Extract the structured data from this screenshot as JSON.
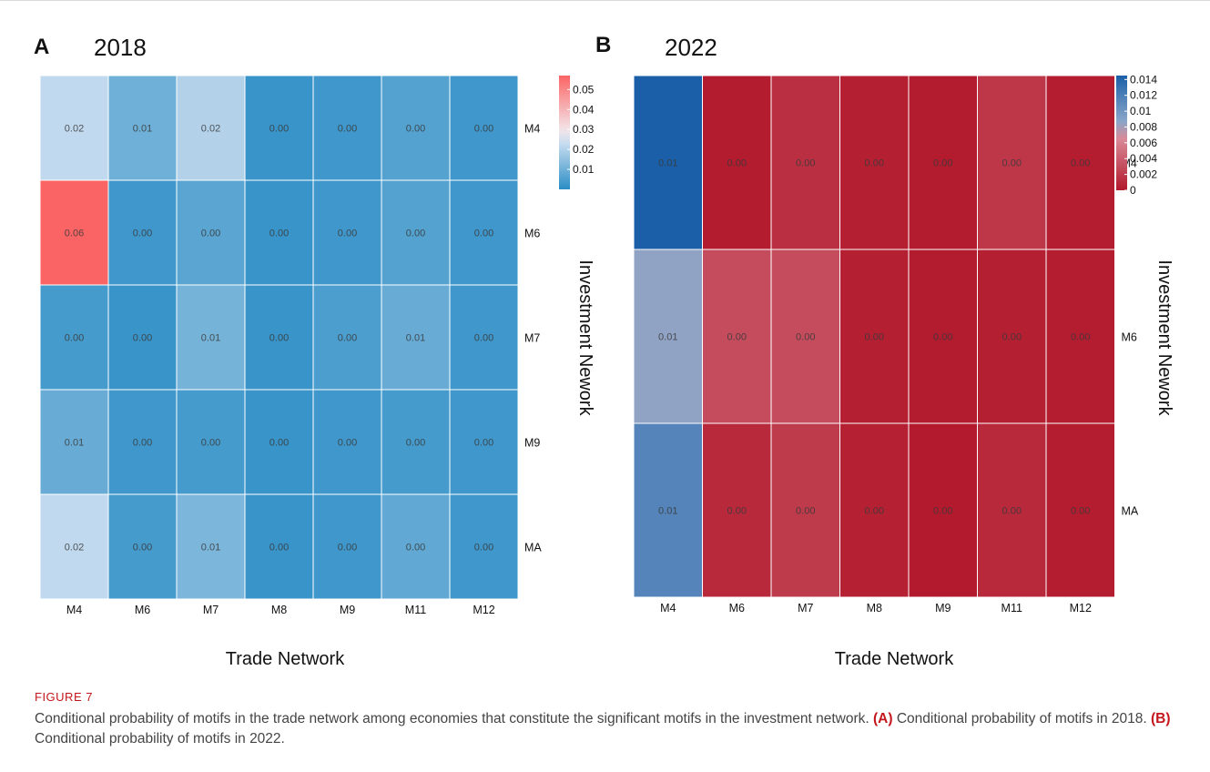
{
  "figure": {
    "label": "FIGURE 7",
    "caption_parts": [
      "Conditional probability of motifs in the trade network among economies that constitute the significant motifs in the investment network. ",
      "(A)",
      " Conditional probability of motifs in 2018. ",
      "(B)",
      " Conditional probability of motifs in 2022."
    ]
  },
  "chart_data": [
    {
      "type": "heatmap",
      "panel_label": "A",
      "title": "2018",
      "xlabel": "Trade Network",
      "ylabel": "Investment Nework",
      "x_categories": [
        "M4",
        "M6",
        "M7",
        "M8",
        "M9",
        "M11",
        "M12"
      ],
      "y_categories": [
        "M4",
        "M6",
        "M7",
        "M9",
        "MA"
      ],
      "cell_labels": [
        [
          "0.02",
          "0.01",
          "0.02",
          "0.00",
          "0.00",
          "0.00",
          "0.00"
        ],
        [
          "0.06",
          "0.00",
          "0.00",
          "0.00",
          "0.00",
          "0.00",
          "0.00"
        ],
        [
          "0.00",
          "0.00",
          "0.01",
          "0.00",
          "0.00",
          "0.01",
          "0.00"
        ],
        [
          "0.01",
          "0.00",
          "0.00",
          "0.00",
          "0.00",
          "0.00",
          "0.00"
        ],
        [
          "0.02",
          "0.00",
          "0.01",
          "0.00",
          "0.00",
          "0.00",
          "0.00"
        ]
      ],
      "values": [
        [
          0.022,
          0.01,
          0.02,
          0.002,
          0.003,
          0.006,
          0.003
        ],
        [
          0.057,
          0.003,
          0.007,
          0.002,
          0.003,
          0.006,
          0.003
        ],
        [
          0.004,
          0.002,
          0.011,
          0.002,
          0.005,
          0.009,
          0.003
        ],
        [
          0.009,
          0.003,
          0.004,
          0.002,
          0.003,
          0.004,
          0.003
        ],
        [
          0.022,
          0.004,
          0.012,
          0.002,
          0.003,
          0.008,
          0.003
        ]
      ],
      "colorbar": {
        "min": 0.0,
        "max": 0.057,
        "ticks": [
          0.05,
          0.04,
          0.03,
          0.02,
          0.01
        ],
        "tick_labels": [
          "0.05",
          "0.04",
          "0.03",
          "0.02",
          "0.01"
        ]
      },
      "color_scale": [
        {
          "stop": 0.0,
          "color": "#2a8dc5"
        },
        {
          "stop": 0.4,
          "color": "#c6dcef"
        },
        {
          "stop": 0.52,
          "color": "#f3e6ea"
        },
        {
          "stop": 1.0,
          "color": "#fb6464"
        }
      ],
      "grid_lines": true,
      "legend_position": "right"
    },
    {
      "type": "heatmap",
      "panel_label": "B",
      "title": "2022",
      "xlabel": "Trade Network",
      "ylabel": "Investment Nework",
      "x_categories": [
        "M4",
        "M6",
        "M7",
        "M8",
        "M9",
        "M11",
        "M12"
      ],
      "y_categories": [
        "M4",
        "M6",
        "MA"
      ],
      "cell_labels": [
        [
          "0.01",
          "0.00",
          "0.00",
          "0.00",
          "0.00",
          "0.00",
          "0.00"
        ],
        [
          "0.01",
          "0.00",
          "0.00",
          "0.00",
          "0.00",
          "0.00",
          "0.00"
        ],
        [
          "0.01",
          "0.00",
          "0.00",
          "0.00",
          "0.00",
          "0.00",
          "0.00"
        ]
      ],
      "values": [
        [
          0.0145,
          0.0002,
          0.0014,
          0.0004,
          0.0002,
          0.0018,
          0.0003
        ],
        [
          0.0085,
          0.003,
          0.003,
          0.0004,
          0.0002,
          0.0004,
          0.0003
        ],
        [
          0.0115,
          0.001,
          0.002,
          0.0005,
          0.0001,
          0.001,
          0.0003
        ]
      ],
      "colorbar": {
        "min": 0.0,
        "max": 0.0145,
        "ticks": [
          0.014,
          0.012,
          0.01,
          0.008,
          0.006,
          0.004,
          0.002,
          0
        ],
        "tick_labels": [
          "0.014",
          "0.012",
          "0.01",
          "0.008",
          "0.006",
          "0.004",
          "0.002",
          "0"
        ]
      },
      "color_scale": [
        {
          "stop": 0.0,
          "color": "#b2182b"
        },
        {
          "stop": 0.45,
          "color": "#d98a98"
        },
        {
          "stop": 0.6,
          "color": "#8aa6c9"
        },
        {
          "stop": 1.0,
          "color": "#1a5fa8"
        }
      ],
      "grid_lines": true,
      "legend_position": "right"
    }
  ]
}
